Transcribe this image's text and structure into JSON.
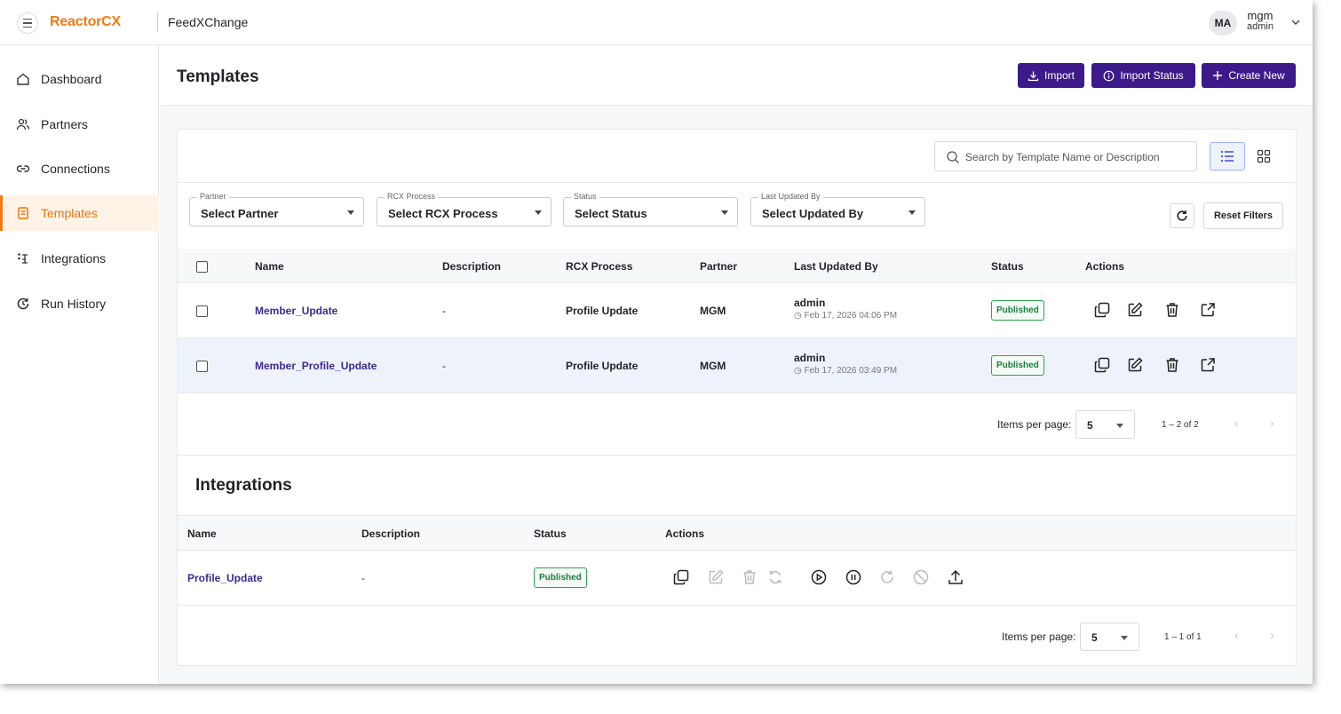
{
  "header": {
    "logo_text": "ReactorCX",
    "app_name": "FeedXChange",
    "avatar_initials": "MA",
    "user_name": "mgm",
    "user_role": "admin"
  },
  "sidebar": {
    "items": [
      {
        "label": "Dashboard",
        "icon": "home-icon"
      },
      {
        "label": "Partners",
        "icon": "users-icon"
      },
      {
        "label": "Connections",
        "icon": "link-icon"
      },
      {
        "label": "Templates",
        "icon": "document-icon",
        "active": true
      },
      {
        "label": "Integrations",
        "icon": "integrations-icon"
      },
      {
        "label": "Run History",
        "icon": "history-icon"
      }
    ]
  },
  "page": {
    "title": "Templates",
    "buttons": {
      "import": "Import",
      "import_status": "Import Status",
      "create_new": "Create New"
    }
  },
  "templates": {
    "search_placeholder": "Search by Template Name or Description",
    "filters": [
      {
        "legend": "Partner",
        "value": "Select Partner"
      },
      {
        "legend": "RCX Process",
        "value": "Select RCX Process"
      },
      {
        "legend": "Status",
        "value": "Select Status"
      },
      {
        "legend": "Last Updated By",
        "value": "Select Updated By"
      }
    ],
    "reset_label": "Reset Filters",
    "columns": [
      "Name",
      "Description",
      "RCX Process",
      "Partner",
      "Last Updated By",
      "Status",
      "Actions"
    ],
    "rows": [
      {
        "name": "Member_Update",
        "description": "-",
        "process": "Profile Update",
        "partner": "MGM",
        "updated_by": "admin",
        "updated_at": "Feb 17, 2026 04:06 PM",
        "status": "Published"
      },
      {
        "name": "Member_Profile_Update",
        "description": "-",
        "process": "Profile Update",
        "partner": "MGM",
        "updated_by": "admin",
        "updated_at": "Feb 17, 2026 03:49 PM",
        "status": "Published"
      }
    ],
    "pager": {
      "label": "Items per page:",
      "size": "5",
      "range": "1 – 2 of 2"
    }
  },
  "integrations": {
    "title": "Integrations",
    "columns": [
      "Name",
      "Description",
      "Status",
      "Actions"
    ],
    "rows": [
      {
        "name": "Profile_Update",
        "description": "-",
        "status": "Published"
      }
    ],
    "pager": {
      "label": "Items per page:",
      "size": "5",
      "range": "1 – 1 of 1"
    }
  },
  "colors": {
    "brand_orange": "#f07a12",
    "primary_purple": "#3d1a8a",
    "status_green": "#2ea44f"
  }
}
